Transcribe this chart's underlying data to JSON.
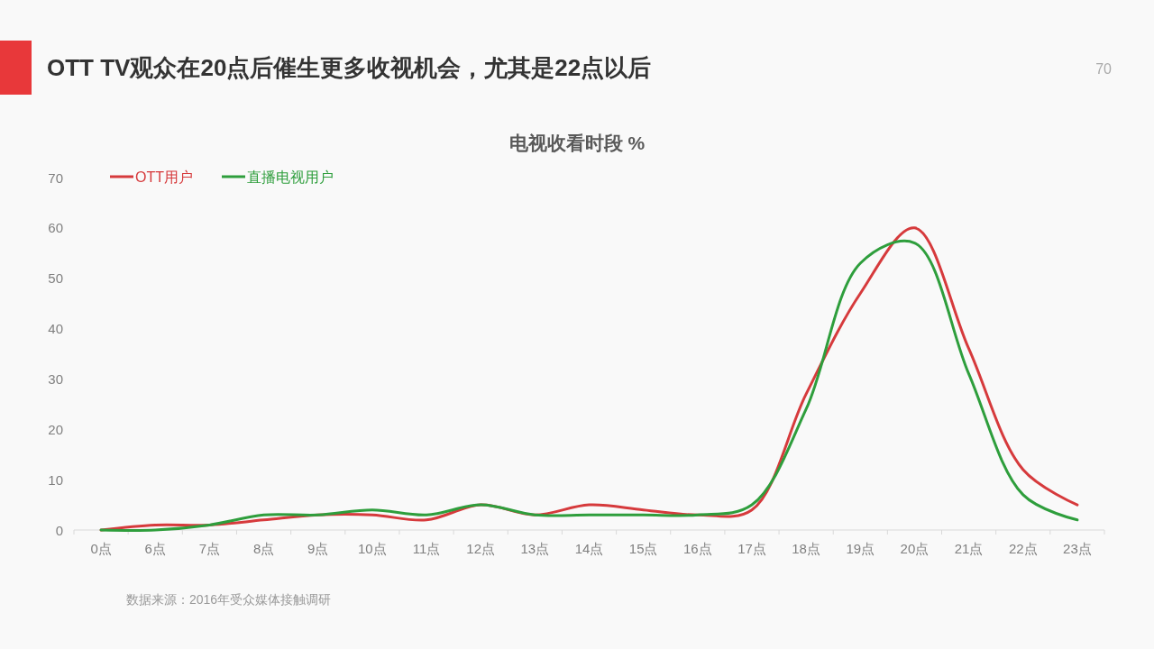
{
  "chart_data": {
    "type": "line",
    "title": "OTT TV观众在20点后催生更多收视机会，尤其是22点以后",
    "subtitle": "电视收看时段 %",
    "annotations": [
      "70",
      "数据来源：2016年受众媒体接触调研"
    ],
    "categories": [
      "0点",
      "6点",
      "7点",
      "8点",
      "9点",
      "10点",
      "11点",
      "12点",
      "13点",
      "14点",
      "15点",
      "16点",
      "17点",
      "18点",
      "19点",
      "20点",
      "21点",
      "22点",
      "23点"
    ],
    "series": [
      {
        "name": "OTT用户",
        "color": "#d63a3c",
        "values": [
          0,
          1,
          1,
          2,
          3,
          3,
          2,
          5,
          3,
          5,
          4,
          3,
          4,
          27,
          47,
          60,
          36,
          12,
          5
        ]
      },
      {
        "name": "直播电视用户",
        "color": "#2e9e3c",
        "values": [
          0,
          0,
          1,
          3,
          3,
          4,
          3,
          5,
          3,
          3,
          3,
          3,
          5,
          24,
          53,
          57,
          31,
          7,
          2
        ]
      }
    ],
    "ylim": [
      0,
      70
    ],
    "yticks": [
      0,
      10,
      20,
      30,
      40,
      50,
      60,
      70
    ],
    "legend": "top left"
  }
}
